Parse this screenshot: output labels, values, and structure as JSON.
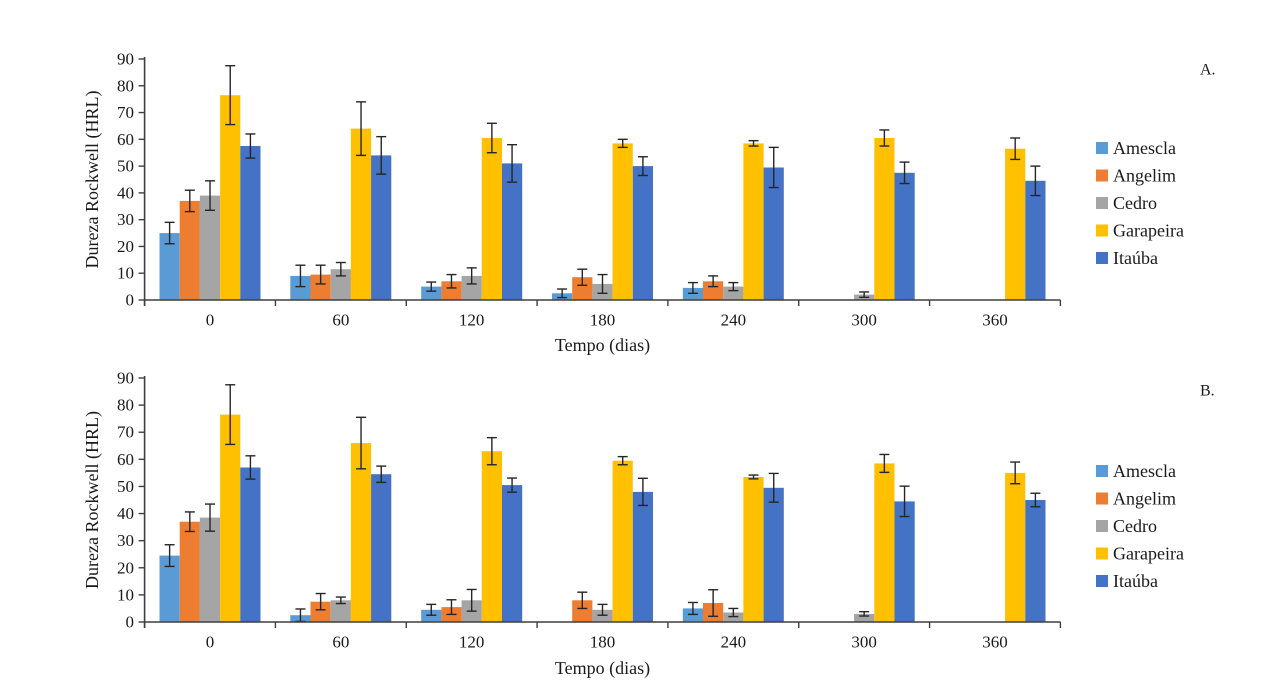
{
  "figure": {
    "background": "#ffffff",
    "axis_color": "#3f3f3f",
    "error_bar_color": "#262626",
    "text_color": "#1a1a1a"
  },
  "chart_data": [
    {
      "type": "bar",
      "panel_label": "A.",
      "xlabel": "Tempo (dias)",
      "ylabel": "Dureza Rockwell (HRL)",
      "ylim": [
        0,
        90
      ],
      "yticks": [
        0,
        10,
        20,
        30,
        40,
        50,
        60,
        70,
        80,
        90
      ],
      "categories": [
        "0",
        "60",
        "120",
        "180",
        "240",
        "300",
        "360"
      ],
      "grid": false,
      "legend_position": "right",
      "error_bars": true,
      "series": [
        {
          "name": "Amescla",
          "color": "#5B9BD5",
          "values": [
            25,
            9,
            5,
            2.5,
            4.5,
            0,
            0
          ],
          "errors": [
            4,
            4,
            1.7,
            1.6,
            2,
            0,
            0
          ]
        },
        {
          "name": "Angelim",
          "color": "#ED7D31",
          "values": [
            37,
            9.5,
            7,
            8.5,
            7,
            0,
            0
          ],
          "errors": [
            4,
            3.5,
            2.5,
            3,
            2,
            0,
            0
          ]
        },
        {
          "name": "Cedro",
          "color": "#A5A5A5",
          "values": [
            39,
            11.5,
            9,
            6,
            5,
            2,
            0
          ],
          "errors": [
            5.5,
            2.5,
            3,
            3.5,
            1.5,
            1,
            0
          ]
        },
        {
          "name": "Garapeira",
          "color": "#FFC000",
          "values": [
            76.5,
            64,
            60.5,
            58.5,
            58.5,
            60.5,
            56.5
          ],
          "errors": [
            11,
            10,
            5.5,
            1.5,
            1,
            3,
            4
          ]
        },
        {
          "name": "Itaúba",
          "color": "#4472C4",
          "values": [
            57.5,
            54,
            51,
            50,
            49.5,
            47.5,
            44.5
          ],
          "errors": [
            4.5,
            7,
            7,
            3.5,
            7.5,
            4,
            5.5
          ]
        }
      ]
    },
    {
      "type": "bar",
      "panel_label": "B.",
      "xlabel": "Tempo (dias)",
      "ylabel": "Dureza Rockwell (HRL)",
      "ylim": [
        0,
        90
      ],
      "yticks": [
        0,
        10,
        20,
        30,
        40,
        50,
        60,
        70,
        80,
        90
      ],
      "categories": [
        "0",
        "60",
        "120",
        "180",
        "240",
        "300",
        "360"
      ],
      "grid": false,
      "legend_position": "right",
      "error_bars": true,
      "series": [
        {
          "name": "Amescla",
          "color": "#5B9BD5",
          "values": [
            24.5,
            2.5,
            4.5,
            0,
            5,
            0,
            0
          ],
          "errors": [
            4,
            2.3,
            2,
            0,
            2.2,
            0,
            0
          ]
        },
        {
          "name": "Angelim",
          "color": "#ED7D31",
          "values": [
            37,
            7.5,
            5.5,
            8,
            7,
            0,
            0
          ],
          "errors": [
            3.6,
            3,
            2.7,
            3,
            4.9,
            0,
            0
          ]
        },
        {
          "name": "Cedro",
          "color": "#A5A5A5",
          "values": [
            38.5,
            8,
            8,
            4.5,
            3.5,
            3,
            0
          ],
          "errors": [
            5,
            1.2,
            4,
            2,
            1.5,
            0.8,
            0
          ]
        },
        {
          "name": "Garapeira",
          "color": "#FFC000",
          "values": [
            76.5,
            66,
            63,
            59.5,
            53.5,
            58.5,
            55
          ],
          "errors": [
            11,
            9.5,
            5,
            1.5,
            0.7,
            3.3,
            4
          ]
        },
        {
          "name": "Itaúba",
          "color": "#4472C4",
          "values": [
            57,
            54.5,
            50.5,
            48,
            49.5,
            44.5,
            45
          ],
          "errors": [
            4.3,
            3,
            2.6,
            5,
            5.3,
            5.6,
            2.5
          ]
        }
      ]
    }
  ]
}
